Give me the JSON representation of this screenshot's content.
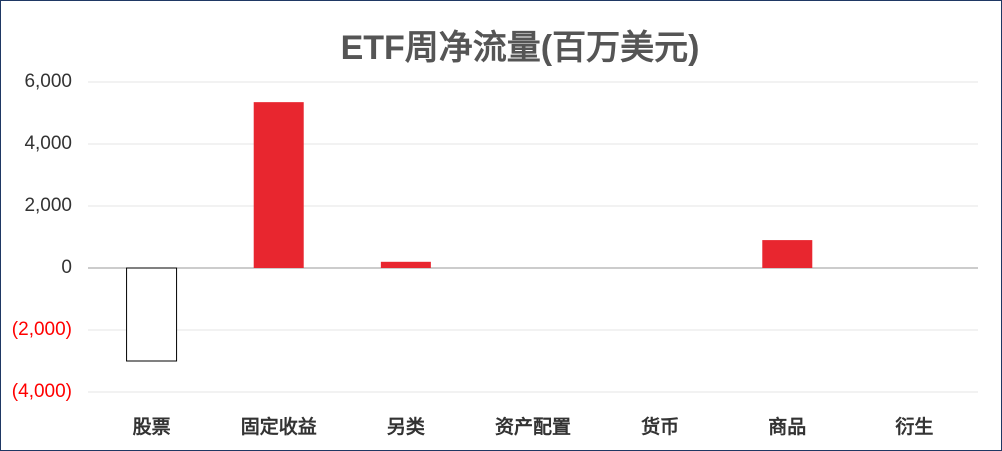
{
  "chart_data": {
    "type": "bar",
    "title": "ETF周净流量(百万美元)",
    "categories": [
      "股票",
      "固定收益",
      "另类",
      "资产配置",
      "货币",
      "商品",
      "衍生"
    ],
    "values": [
      -3000,
      5350,
      200,
      0,
      0,
      900,
      0
    ],
    "color": "#e8262f",
    "negative_fill": "#ffffff",
    "negative_stroke": "#000000",
    "negative_label_color": "#ff0000",
    "ylim": [
      -4000,
      6000
    ],
    "yticks": [
      {
        "value": -4000,
        "label": "(4,000)"
      },
      {
        "value": -2000,
        "label": "(2,000)"
      },
      0,
      {
        "value": 2000,
        "label": "2,000"
      },
      {
        "value": 4000,
        "label": "4,000"
      },
      {
        "value": 6000,
        "label": "6,000"
      }
    ],
    "grid": true
  }
}
